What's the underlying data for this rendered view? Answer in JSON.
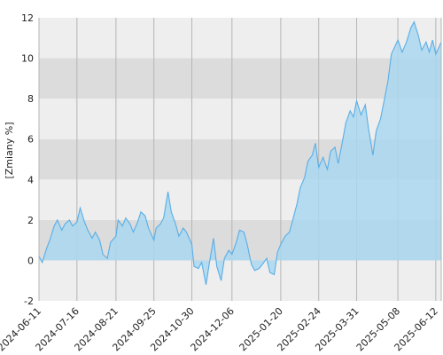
{
  "chart_data": {
    "type": "area",
    "ylabel": "[Zmiany %]",
    "ylim": [
      -2,
      12
    ],
    "y_ticks": [
      -2,
      0,
      2,
      4,
      6,
      8,
      10,
      12
    ],
    "x_range": [
      "2024-06-11",
      "2025-06-17"
    ],
    "x_ticks": [
      "2024-06-11",
      "2024-07-16",
      "2024-08-21",
      "2024-09-25",
      "2024-10-30",
      "2024-12-06",
      "2025-01-20",
      "2025-02-24",
      "2025-03-31",
      "2025-05-08",
      "2025-06-12"
    ],
    "grid": true,
    "series": [
      {
        "x": [
          "2024-06-11",
          "2024-06-14",
          "2024-06-18",
          "2024-06-21",
          "2024-06-25",
          "2024-06-28",
          "2024-07-02",
          "2024-07-05",
          "2024-07-09",
          "2024-07-12",
          "2024-07-16",
          "2024-07-19",
          "2024-07-23",
          "2024-07-26",
          "2024-07-30",
          "2024-08-02",
          "2024-08-06",
          "2024-08-09",
          "2024-08-13",
          "2024-08-16",
          "2024-08-21",
          "2024-08-23",
          "2024-08-27",
          "2024-08-30",
          "2024-09-03",
          "2024-09-06",
          "2024-09-10",
          "2024-09-13",
          "2024-09-17",
          "2024-09-20",
          "2024-09-25",
          "2024-09-27",
          "2024-10-01",
          "2024-10-04",
          "2024-10-08",
          "2024-10-11",
          "2024-10-15",
          "2024-10-18",
          "2024-10-22",
          "2024-10-25",
          "2024-10-30",
          "2024-11-01",
          "2024-11-05",
          "2024-11-08",
          "2024-11-12",
          "2024-11-15",
          "2024-11-19",
          "2024-11-22",
          "2024-11-26",
          "2024-11-29",
          "2024-12-03",
          "2024-12-06",
          "2024-12-10",
          "2024-12-13",
          "2024-12-17",
          "2024-12-20",
          "2024-12-24",
          "2024-12-27",
          "2024-12-31",
          "2025-01-03",
          "2025-01-07",
          "2025-01-10",
          "2025-01-14",
          "2025-01-17",
          "2025-01-20",
          "2025-01-24",
          "2025-01-28",
          "2025-01-31",
          "2025-02-04",
          "2025-02-07",
          "2025-02-11",
          "2025-02-14",
          "2025-02-18",
          "2025-02-21",
          "2025-02-24",
          "2025-02-28",
          "2025-03-04",
          "2025-03-07",
          "2025-03-11",
          "2025-03-14",
          "2025-03-18",
          "2025-03-21",
          "2025-03-25",
          "2025-03-28",
          "2025-03-31",
          "2025-04-04",
          "2025-04-08",
          "2025-04-11",
          "2025-04-15",
          "2025-04-18",
          "2025-04-22",
          "2025-04-25",
          "2025-04-29",
          "2025-05-02",
          "2025-05-08",
          "2025-05-12",
          "2025-05-16",
          "2025-05-20",
          "2025-05-23",
          "2025-05-27",
          "2025-05-30",
          "2025-06-03",
          "2025-06-06",
          "2025-06-09",
          "2025-06-12",
          "2025-06-17"
        ],
        "values": [
          0.2,
          -0.1,
          0.6,
          1.0,
          1.7,
          2.0,
          1.5,
          1.8,
          2.0,
          1.7,
          1.9,
          2.6,
          1.9,
          1.5,
          1.1,
          1.4,
          1.0,
          0.3,
          0.1,
          0.9,
          1.2,
          2.0,
          1.7,
          2.1,
          1.8,
          1.4,
          1.9,
          2.4,
          2.2,
          1.6,
          1.0,
          1.6,
          1.8,
          2.1,
          3.4,
          2.4,
          1.8,
          1.2,
          1.6,
          1.4,
          0.8,
          -0.3,
          -0.4,
          -0.1,
          -1.2,
          -0.2,
          1.1,
          -0.3,
          -1.0,
          0.1,
          0.5,
          0.3,
          0.9,
          1.5,
          1.4,
          0.8,
          -0.2,
          -0.5,
          -0.4,
          -0.2,
          0.1,
          -0.6,
          -0.7,
          0.4,
          0.8,
          1.2,
          1.4,
          2.0,
          2.8,
          3.6,
          4.1,
          4.9,
          5.2,
          5.8,
          4.6,
          5.1,
          4.5,
          5.4,
          5.6,
          4.8,
          5.9,
          6.8,
          7.4,
          7.1,
          7.9,
          7.2,
          7.7,
          6.5,
          5.2,
          6.4,
          7.0,
          7.8,
          8.9,
          10.2,
          10.9,
          10.3,
          10.8,
          11.5,
          11.8,
          11.1,
          10.4,
          10.8,
          10.3,
          10.9,
          10.2,
          10.8
        ]
      }
    ],
    "colors": {
      "line": "#5aaee6",
      "area": "#a9d7ee",
      "band_light": "#eeeeee",
      "band_dark": "#dcdcdc",
      "vgrid": "#b5b5b5"
    }
  }
}
